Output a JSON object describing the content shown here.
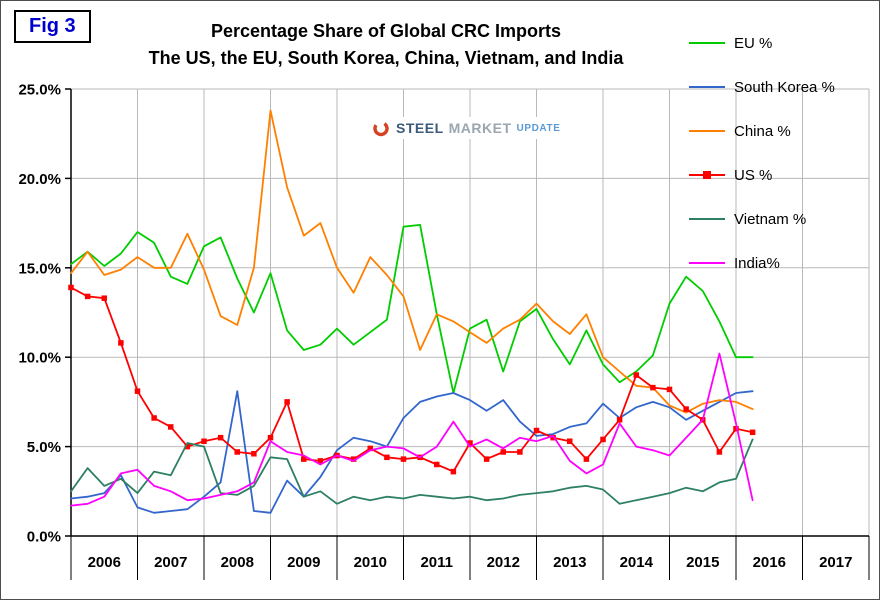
{
  "badge": {
    "label": "Fig 3"
  },
  "logo": {
    "word1": "STEEL",
    "word2": "MARKET",
    "word3": "UPDATE"
  },
  "chart_data": {
    "type": "line",
    "title": "Percentage Share of Global CRC Imports",
    "subtitle": "The US, the EU, South Korea, China, Vietnam, and India",
    "x_start": 2006.0,
    "x_step": 0.25,
    "x_axis_range": [
      2006,
      2018
    ],
    "x_tick_labels": [
      "2006",
      "2007",
      "2008",
      "2009",
      "2010",
      "2011",
      "2012",
      "2013",
      "2014",
      "2015",
      "2016",
      "2017"
    ],
    "y_axis_range": [
      0,
      25
    ],
    "y_tick_values": [
      0,
      5,
      10,
      15,
      20,
      25
    ],
    "y_ticks": [
      "0.0%",
      "5.0%",
      "10.0%",
      "15.0%",
      "20.0%",
      "25.0%"
    ],
    "grid": true,
    "legend_position": "right",
    "series": [
      {
        "name": "EU %",
        "color": "#00cc00",
        "marker": "none",
        "values": [
          15.2,
          15.9,
          15.1,
          15.8,
          17.0,
          16.4,
          14.5,
          14.1,
          16.2,
          16.7,
          14.4,
          12.5,
          14.7,
          11.5,
          10.4,
          10.7,
          11.6,
          10.7,
          11.4,
          12.1,
          17.3,
          17.4,
          12.4,
          8.0,
          11.6,
          12.1,
          9.2,
          12.0,
          12.7,
          11.0,
          9.6,
          11.5,
          9.6,
          8.6,
          9.2,
          10.1,
          13.0,
          14.5,
          13.7,
          12.0,
          10.0,
          10.0
        ]
      },
      {
        "name": "South Korea %",
        "color": "#3366cc",
        "marker": "none",
        "values": [
          2.1,
          2.2,
          2.4,
          3.4,
          1.6,
          1.3,
          1.4,
          1.5,
          2.2,
          3.0,
          8.1,
          1.4,
          1.3,
          3.1,
          2.2,
          3.3,
          4.8,
          5.5,
          5.3,
          5.0,
          6.6,
          7.5,
          7.8,
          8.0,
          7.6,
          7.0,
          7.6,
          6.4,
          5.6,
          5.7,
          6.1,
          6.3,
          7.4,
          6.6,
          7.2,
          7.5,
          7.2,
          6.5,
          7.0,
          7.5,
          8.0,
          8.1
        ]
      },
      {
        "name": "China %",
        "color": "#ff8000",
        "marker": "none",
        "values": [
          14.7,
          15.9,
          14.6,
          14.9,
          15.6,
          15.0,
          15.0,
          16.9,
          14.9,
          12.3,
          11.8,
          15.0,
          23.8,
          19.5,
          16.8,
          17.5,
          15.0,
          13.6,
          15.6,
          14.6,
          13.4,
          10.4,
          12.4,
          12.0,
          11.4,
          10.8,
          11.6,
          12.1,
          13.0,
          12.0,
          11.3,
          12.4,
          10.0,
          9.2,
          8.4,
          8.3,
          7.3,
          6.9,
          7.4,
          7.6,
          7.5,
          7.1
        ]
      },
      {
        "name": "US %",
        "color": "#ff0000",
        "marker": "square",
        "values": [
          13.9,
          13.4,
          13.3,
          10.8,
          8.1,
          6.6,
          6.1,
          5.0,
          5.3,
          5.5,
          4.7,
          4.6,
          5.5,
          7.5,
          4.3,
          4.2,
          4.5,
          4.3,
          4.9,
          4.4,
          4.3,
          4.4,
          4.0,
          3.6,
          5.2,
          4.3,
          4.7,
          4.7,
          5.9,
          5.5,
          5.3,
          4.3,
          5.4,
          6.5,
          9.0,
          8.3,
          8.2,
          7.1,
          6.5,
          4.7,
          6.0,
          5.8
        ]
      },
      {
        "name": "Vietnam %",
        "color": "#2e8062",
        "marker": "none",
        "values": [
          2.5,
          3.8,
          2.8,
          3.2,
          2.4,
          3.6,
          3.4,
          5.2,
          5.0,
          2.4,
          2.3,
          2.8,
          4.4,
          4.3,
          2.2,
          2.5,
          1.8,
          2.2,
          2.0,
          2.2,
          2.1,
          2.3,
          2.2,
          2.1,
          2.2,
          2.0,
          2.1,
          2.3,
          2.4,
          2.5,
          2.7,
          2.8,
          2.6,
          1.8,
          2.0,
          2.2,
          2.4,
          2.7,
          2.5,
          3.0,
          3.2,
          5.4
        ]
      },
      {
        "name": "India%",
        "color": "#ff00ff",
        "marker": "none",
        "values": [
          1.7,
          1.8,
          2.2,
          3.5,
          3.7,
          2.8,
          2.5,
          2.0,
          2.1,
          2.3,
          2.5,
          3.0,
          5.3,
          4.7,
          4.5,
          4.0,
          4.5,
          4.2,
          4.8,
          5.0,
          4.9,
          4.4,
          5.0,
          6.4,
          5.0,
          5.4,
          4.9,
          5.5,
          5.3,
          5.6,
          4.2,
          3.5,
          4.0,
          6.3,
          5.0,
          4.8,
          4.5,
          5.5,
          6.5,
          10.2,
          6.3,
          2.0
        ]
      }
    ]
  }
}
